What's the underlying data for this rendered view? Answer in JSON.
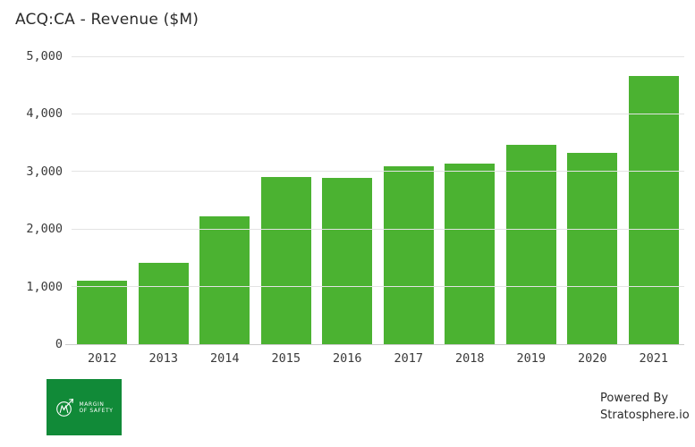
{
  "chart_data": {
    "type": "bar",
    "title": "ACQ:CA - Revenue ($M)",
    "categories": [
      "2012",
      "2013",
      "2014",
      "2015",
      "2016",
      "2017",
      "2018",
      "2019",
      "2020",
      "2021"
    ],
    "values": [
      1100,
      1410,
      2215,
      2905,
      2890,
      3090,
      3140,
      3470,
      3320,
      4655
    ],
    "xlabel": "",
    "ylabel": "",
    "ylim": [
      0,
      5000
    ],
    "yticks": [
      0,
      1000,
      2000,
      3000,
      4000,
      5000
    ],
    "ytick_labels": [
      "0",
      "1,000",
      "2,000",
      "3,000",
      "4,000",
      "5,000"
    ],
    "grid": true,
    "legend": false,
    "bar_color": "#4bb231"
  },
  "colors": {
    "bar_green": "#4bb231",
    "logo_green": "#118a38",
    "gridline": "#e3e3e3",
    "axis_line": "#cccccc",
    "title_text": "#2b2b2b",
    "tick_text": "#3a3a3a"
  },
  "footer": {
    "logo": {
      "line1": "MARGIN",
      "line2": "OF SAFETY"
    },
    "powered_by": {
      "line1": "Powered By",
      "line2": "Stratosphere.io"
    }
  }
}
